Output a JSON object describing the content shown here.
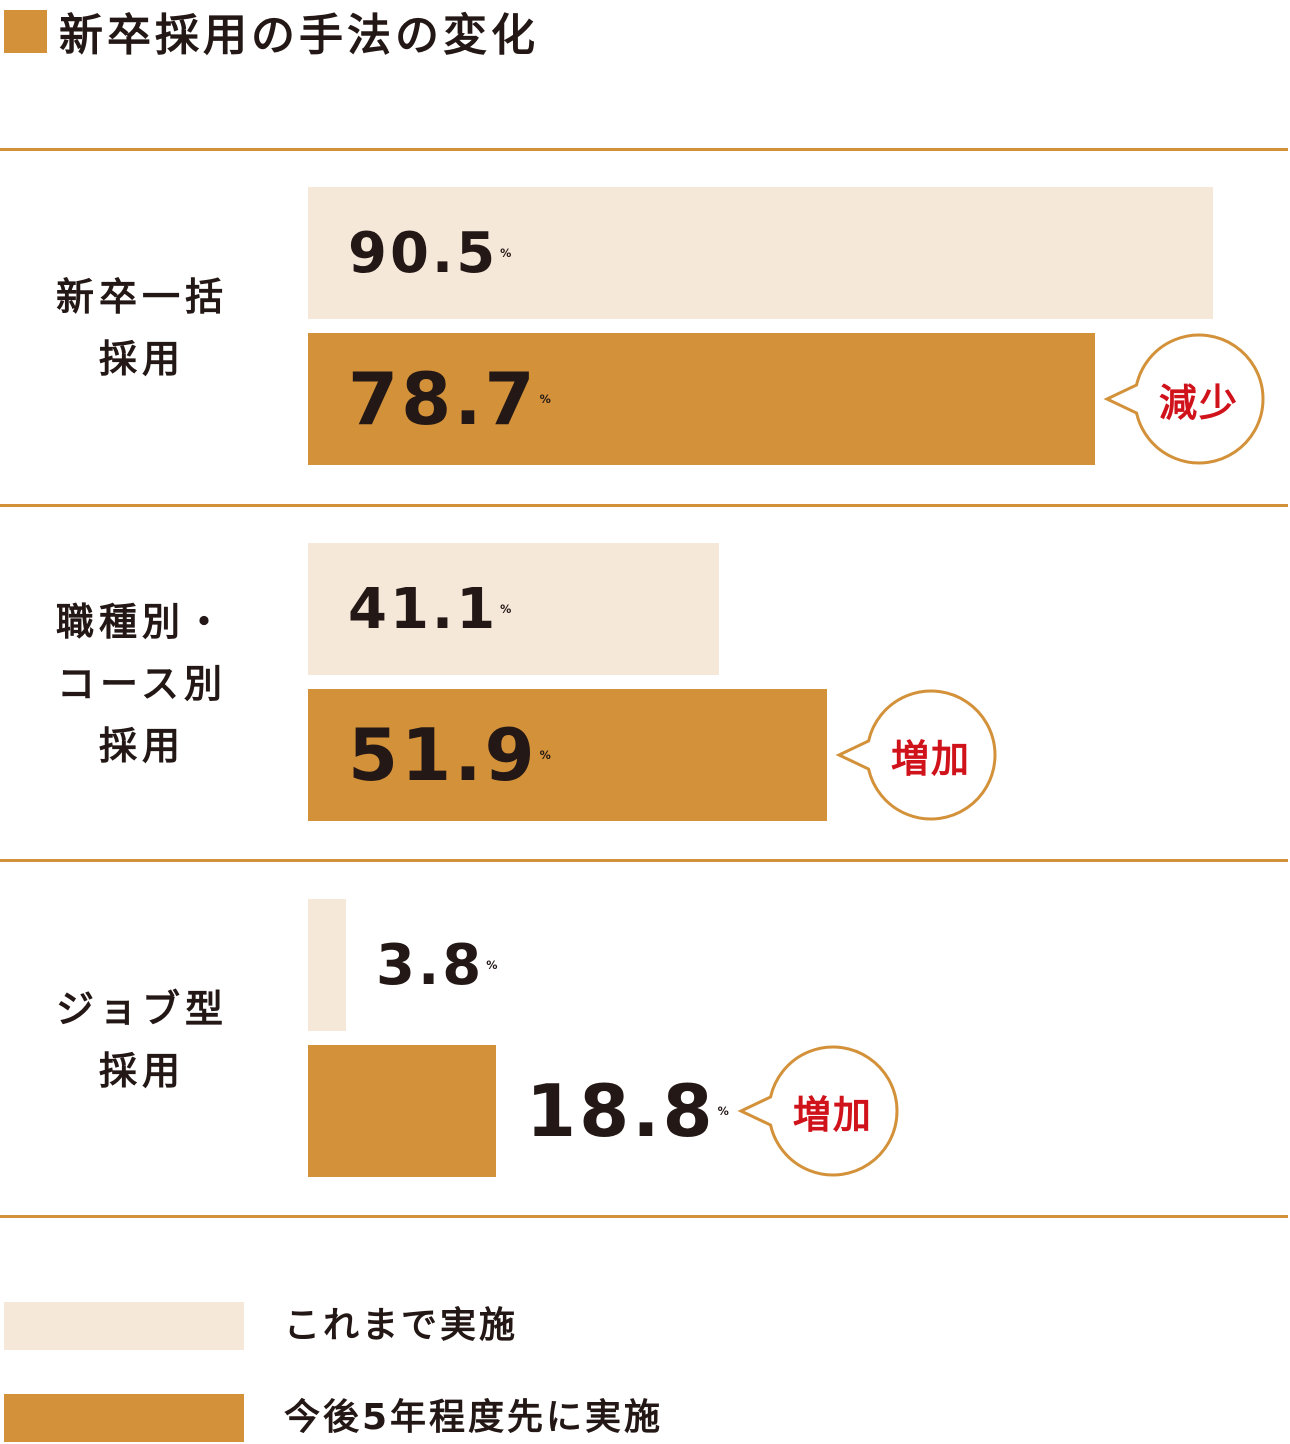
{
  "title": "新卒採用の手法の変化",
  "colors": {
    "accent": "#D3913A",
    "light": "#F5E8D9",
    "text": "#231815",
    "callout_text": "#D0121B",
    "rule": "#D3913A"
  },
  "chart_data": {
    "type": "bar",
    "orientation": "horizontal",
    "title": "新卒採用の手法の変化",
    "categories": [
      [
        "新卒一括",
        "採用"
      ],
      [
        "職種別・",
        "コース別",
        "採用"
      ],
      [
        "ジョブ型",
        "採用"
      ]
    ],
    "series": [
      {
        "name": "これまで実施",
        "values": [
          90.5,
          41.1,
          3.8
        ]
      },
      {
        "name": "今後5年程度先に実施",
        "values": [
          78.7,
          51.9,
          18.8
        ]
      }
    ],
    "unit": "%",
    "xlim": [
      0,
      100
    ],
    "callouts": [
      "減少",
      "増加",
      "増加"
    ],
    "legend_position": "bottom-left"
  }
}
